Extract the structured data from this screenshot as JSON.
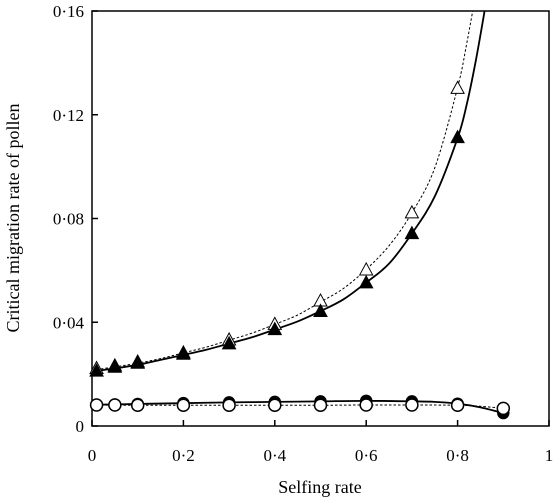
{
  "chart_data": {
    "type": "line",
    "xlabel": "Selfing rate",
    "ylabel": "Critical migration rate of pollen",
    "xlim": [
      0,
      1
    ],
    "ylim": [
      0,
      0.16
    ],
    "x_ticks": [
      0,
      0.2,
      0.4,
      0.6,
      0.8,
      1
    ],
    "x_tick_labels": [
      "0",
      "0·2",
      "0·4",
      "0·6",
      "0·8",
      "1"
    ],
    "y_ticks": [
      0,
      0.04,
      0.08,
      0.12,
      0.16
    ],
    "y_tick_labels": [
      "0",
      "0·04",
      "0·08",
      "0·12",
      "0·16"
    ],
    "grid": false,
    "series": [
      {
        "marker": "triangle-open",
        "line": "dotted",
        "points": {
          "x": [
            0.01,
            0.05,
            0.1,
            0.2,
            0.3,
            0.4,
            0.5,
            0.6,
            0.7,
            0.8
          ],
          "y": [
            0.022,
            0.023,
            0.0245,
            0.028,
            0.033,
            0.039,
            0.048,
            0.06,
            0.082,
            0.13
          ]
        },
        "curve": {
          "x": [
            0,
            0.05,
            0.1,
            0.15,
            0.2,
            0.25,
            0.3,
            0.35,
            0.4,
            0.45,
            0.5,
            0.55,
            0.6,
            0.65,
            0.7,
            0.75,
            0.8,
            0.82,
            0.84,
            0.85
          ],
          "y": [
            0.0215,
            0.0228,
            0.0242,
            0.026,
            0.0282,
            0.0304,
            0.0331,
            0.0358,
            0.0392,
            0.0428,
            0.0478,
            0.053,
            0.0604,
            0.0695,
            0.0822,
            0.0995,
            0.1305,
            0.1475,
            0.167,
            0.178
          ]
        }
      },
      {
        "marker": "triangle-filled",
        "line": "solid",
        "points": {
          "x": [
            0.01,
            0.05,
            0.1,
            0.2,
            0.3,
            0.4,
            0.5,
            0.6,
            0.7,
            0.8
          ],
          "y": [
            0.021,
            0.0225,
            0.024,
            0.0275,
            0.0315,
            0.037,
            0.044,
            0.055,
            0.074,
            0.111
          ]
        },
        "curve": {
          "x": [
            0,
            0.05,
            0.1,
            0.15,
            0.2,
            0.25,
            0.3,
            0.35,
            0.4,
            0.45,
            0.5,
            0.55,
            0.6,
            0.65,
            0.7,
            0.75,
            0.8,
            0.82,
            0.84,
            0.86,
            0.87
          ],
          "y": [
            0.021,
            0.0222,
            0.0236,
            0.0255,
            0.0274,
            0.0294,
            0.0318,
            0.0342,
            0.0372,
            0.0403,
            0.0443,
            0.0488,
            0.0553,
            0.0626,
            0.0742,
            0.0885,
            0.111,
            0.124,
            0.141,
            0.161,
            0.172
          ]
        }
      },
      {
        "marker": "circle-filled",
        "line": "solid",
        "points": {
          "x": [
            0.01,
            0.05,
            0.1,
            0.2,
            0.3,
            0.4,
            0.5,
            0.6,
            0.7,
            0.8,
            0.9
          ],
          "y": [
            0.0082,
            0.0083,
            0.0085,
            0.0088,
            0.0091,
            0.0093,
            0.0095,
            0.0097,
            0.0095,
            0.0086,
            0.005
          ]
        },
        "curve": {
          "x": [
            0,
            0.05,
            0.1,
            0.2,
            0.3,
            0.4,
            0.5,
            0.6,
            0.7,
            0.75,
            0.8,
            0.85,
            0.9
          ],
          "y": [
            0.0082,
            0.0083,
            0.0085,
            0.0088,
            0.0091,
            0.0093,
            0.0095,
            0.0097,
            0.0095,
            0.0093,
            0.0086,
            0.0072,
            0.005
          ]
        }
      },
      {
        "marker": "circle-open",
        "line": "dotted",
        "points": {
          "x": [
            0.01,
            0.05,
            0.1,
            0.2,
            0.3,
            0.4,
            0.5,
            0.6,
            0.7,
            0.8,
            0.9
          ],
          "y": [
            0.0081,
            0.0081,
            0.008,
            0.008,
            0.008,
            0.008,
            0.008,
            0.0081,
            0.0081,
            0.008,
            0.0068
          ]
        },
        "curve": {
          "x": [
            0,
            0.1,
            0.2,
            0.3,
            0.4,
            0.5,
            0.6,
            0.7,
            0.8,
            0.85,
            0.9
          ],
          "y": [
            0.0081,
            0.008,
            0.008,
            0.008,
            0.008,
            0.008,
            0.0081,
            0.0081,
            0.008,
            0.0076,
            0.0068
          ]
        }
      }
    ]
  }
}
